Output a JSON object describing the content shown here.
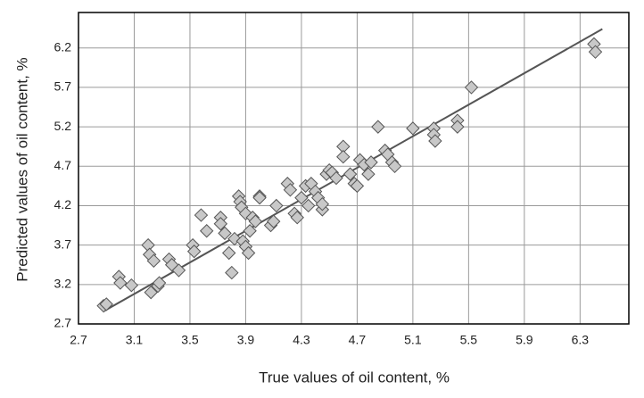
{
  "chart_data": {
    "type": "scatter",
    "x_label": "True values of oil content, %",
    "y_label": "Predicted values of oil content, %",
    "xlim": [
      2.7,
      6.65
    ],
    "ylim": [
      2.7,
      6.65
    ],
    "xticks": [
      2.7,
      3.1,
      3.5,
      3.9,
      4.3,
      4.7,
      5.1,
      5.5,
      5.9,
      6.3
    ],
    "yticks": [
      2.7,
      3.2,
      3.7,
      4.2,
      4.7,
      5.2,
      5.7,
      6.2
    ],
    "grid": true,
    "series": [
      {
        "color": "#c8c8c8",
        "x": [
          2.88,
          2.9,
          2.99,
          3.0,
          3.08,
          3.2,
          3.22,
          3.21,
          3.24,
          3.27,
          3.28,
          3.35,
          3.37,
          3.42,
          3.52,
          3.53,
          3.58,
          3.62,
          3.72,
          3.72,
          3.75,
          3.78,
          3.8,
          3.82,
          3.85,
          3.86,
          3.87,
          3.88,
          3.9,
          3.9,
          3.92,
          3.93,
          3.95,
          3.97,
          4.0,
          4.0,
          4.08,
          4.1,
          4.12,
          4.2,
          4.22,
          4.25,
          4.27,
          4.3,
          4.33,
          4.35,
          4.37,
          4.4,
          4.42,
          4.45,
          4.45,
          4.48,
          4.5,
          4.52,
          4.55,
          4.6,
          4.6,
          4.65,
          4.68,
          4.7,
          4.72,
          4.75,
          4.78,
          4.8,
          4.85,
          4.9,
          4.92,
          4.95,
          4.97,
          5.1,
          5.25,
          5.25,
          5.26,
          5.42,
          5.42,
          5.52,
          6.4,
          6.41
        ],
        "values": [
          2.93,
          2.95,
          3.3,
          3.22,
          3.19,
          3.7,
          3.1,
          3.58,
          3.5,
          3.18,
          3.22,
          3.52,
          3.45,
          3.38,
          3.7,
          3.62,
          4.08,
          3.88,
          4.05,
          3.97,
          3.85,
          3.6,
          3.35,
          3.78,
          4.32,
          4.25,
          4.18,
          3.75,
          3.68,
          4.1,
          3.6,
          3.88,
          4.05,
          4.0,
          4.32,
          4.3,
          3.95,
          4.0,
          4.2,
          4.48,
          4.4,
          4.1,
          4.05,
          4.3,
          4.45,
          4.2,
          4.48,
          4.38,
          4.3,
          4.15,
          4.22,
          4.6,
          4.65,
          4.62,
          4.55,
          4.95,
          4.82,
          4.6,
          4.48,
          4.45,
          4.78,
          4.72,
          4.6,
          4.75,
          5.2,
          4.9,
          4.85,
          4.75,
          4.7,
          5.18,
          5.18,
          5.1,
          5.02,
          5.28,
          5.2,
          5.7,
          6.25,
          6.15
        ]
      }
    ],
    "fit_line": {
      "color": "#555555",
      "x": [
        2.88,
        6.46
      ],
      "values": [
        2.86,
        6.44
      ]
    }
  }
}
